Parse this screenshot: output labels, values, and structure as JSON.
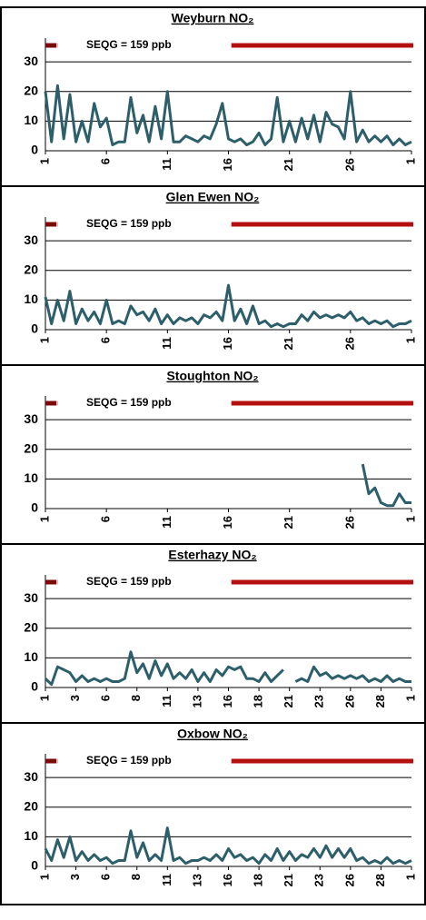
{
  "chart_data": [
    {
      "type": "line",
      "title": "Weyburn NO₂",
      "annotation": "SEQG = 159 ppb",
      "color": "#2d5f6b",
      "x": [
        1,
        1.5,
        2,
        2.5,
        3,
        3.5,
        4,
        4.5,
        5,
        5.5,
        6,
        6.5,
        7,
        7.5,
        8,
        8.5,
        9,
        9.5,
        10,
        10.5,
        11,
        11.5,
        12,
        12.5,
        13,
        13.5,
        14,
        14.5,
        15,
        15.5,
        16,
        16.5,
        17,
        17.5,
        18,
        18.5,
        19,
        19.5,
        20,
        20.5,
        21,
        21.5,
        22,
        22.5,
        23,
        23.5,
        24,
        24.5,
        25,
        25.5,
        26,
        26.5,
        27,
        27.5,
        28,
        28.5,
        29,
        29.5,
        30,
        30.5,
        31
      ],
      "values": [
        20,
        3,
        22,
        4,
        19,
        3,
        10,
        3,
        16,
        8,
        11,
        2,
        3,
        3,
        18,
        6,
        12,
        3,
        15,
        4,
        20,
        3,
        3,
        5,
        4,
        3,
        5,
        4,
        9,
        16,
        4,
        3,
        4,
        2,
        3,
        6,
        2,
        4,
        18,
        3,
        10,
        3,
        11,
        4,
        12,
        3,
        13,
        9,
        8,
        4,
        20,
        3,
        7,
        3,
        5,
        3,
        5,
        2,
        4,
        2,
        3
      ],
      "xlim": [
        1,
        31
      ],
      "xticks": [
        1,
        6,
        11,
        16,
        21,
        26,
        {
          "value": 31,
          "label": "1"
        }
      ],
      "ylim": [
        0,
        38
      ],
      "yticks": [
        0,
        10,
        20,
        30
      ],
      "grid": true
    },
    {
      "type": "line",
      "title": "Glen Ewen NO₂",
      "annotation": "SEQG = 159 ppb",
      "color": "#2d5f6b",
      "x": [
        1,
        1.5,
        2,
        2.5,
        3,
        3.5,
        4,
        4.5,
        5,
        5.5,
        6,
        6.5,
        7,
        7.5,
        8,
        8.5,
        9,
        9.5,
        10,
        10.5,
        11,
        11.5,
        12,
        12.5,
        13,
        13.5,
        14,
        14.5,
        15,
        15.5,
        16,
        16.5,
        17,
        17.5,
        18,
        18.5,
        19,
        19.5,
        20,
        20.5,
        21,
        21.5,
        22,
        22.5,
        23,
        23.5,
        24,
        24.5,
        25,
        25.5,
        26,
        26.5,
        27,
        27.5,
        28,
        28.5,
        29,
        29.5,
        30,
        30.5,
        31
      ],
      "values": [
        11,
        2,
        10,
        3,
        13,
        2,
        7,
        3,
        6,
        2,
        10,
        2,
        3,
        2,
        8,
        5,
        6,
        3,
        7,
        2,
        5,
        2,
        4,
        3,
        4,
        2,
        5,
        4,
        6,
        3,
        15,
        3,
        7,
        2,
        8,
        2,
        3,
        1,
        2,
        1,
        2,
        2,
        5,
        3,
        6,
        4,
        5,
        4,
        5,
        4,
        6,
        3,
        4,
        2,
        3,
        2,
        3,
        1,
        2,
        2,
        3
      ],
      "xlim": [
        1,
        31
      ],
      "xticks": [
        1,
        6,
        11,
        16,
        21,
        26,
        {
          "value": 31,
          "label": "1"
        }
      ],
      "ylim": [
        0,
        38
      ],
      "yticks": [
        0,
        10,
        20,
        30
      ],
      "grid": true
    },
    {
      "type": "line",
      "title": "Stoughton NO₂",
      "annotation": "SEQG = 159 ppb",
      "color": "#2d5f6b",
      "x": [
        1,
        1.5,
        2,
        2.5,
        3,
        3.5,
        4,
        4.5,
        5,
        5.5,
        6,
        6.5,
        7,
        7.5,
        8,
        8.5,
        9,
        9.5,
        10,
        10.5,
        11,
        11.5,
        12,
        12.5,
        13,
        13.5,
        14,
        14.5,
        15,
        15.5,
        16,
        16.5,
        17,
        17.5,
        18,
        18.5,
        19,
        19.5,
        20,
        20.5,
        21,
        21.5,
        22,
        22.5,
        23,
        23.5,
        24,
        24.5,
        25,
        25.5,
        26,
        26.5,
        27,
        27.5,
        28,
        28.5,
        29,
        29.5,
        30,
        30.5,
        31
      ],
      "values": [
        null,
        null,
        null,
        null,
        null,
        null,
        null,
        null,
        null,
        null,
        null,
        null,
        null,
        null,
        null,
        null,
        null,
        null,
        null,
        null,
        null,
        null,
        null,
        null,
        null,
        null,
        null,
        null,
        null,
        null,
        null,
        null,
        null,
        null,
        null,
        null,
        null,
        null,
        null,
        null,
        null,
        null,
        null,
        null,
        null,
        null,
        null,
        null,
        null,
        null,
        null,
        null,
        15,
        5,
        7,
        2,
        1,
        1,
        5,
        2,
        2
      ],
      "xlim": [
        1,
        31
      ],
      "xticks": [
        1,
        6,
        11,
        16,
        21,
        26,
        {
          "value": 31,
          "label": "1"
        }
      ],
      "ylim": [
        0,
        38
      ],
      "yticks": [
        0,
        10,
        20,
        30
      ],
      "grid": true
    },
    {
      "type": "line",
      "title": "Esterhazy NO₂",
      "annotation": "SEQG = 159 ppb",
      "color": "#2d5f6b",
      "x": [
        1,
        1.5,
        2,
        2.5,
        3,
        3.5,
        4,
        4.5,
        5,
        5.5,
        6,
        6.5,
        7,
        7.5,
        8,
        8.5,
        9,
        9.5,
        10,
        10.5,
        11,
        11.5,
        12,
        12.5,
        13,
        13.5,
        14,
        14.5,
        15,
        15.5,
        16,
        16.5,
        17,
        17.5,
        18,
        18.5,
        19,
        19.5,
        20,
        20.5,
        21,
        21.5,
        22,
        22.5,
        23,
        23.5,
        24,
        24.5,
        25,
        25.5,
        26,
        26.5,
        27,
        27.5,
        28,
        28.5,
        29,
        29.5,
        30,
        30.5,
        31
      ],
      "values": [
        3,
        1,
        7,
        6,
        5,
        2,
        4,
        2,
        3,
        2,
        3,
        2,
        2,
        3,
        12,
        5,
        8,
        3,
        9,
        4,
        8,
        3,
        5,
        3,
        6,
        2,
        5,
        2,
        6,
        4,
        7,
        6,
        7,
        3,
        3,
        2,
        5,
        2,
        4,
        6,
        null,
        2,
        3,
        2,
        7,
        4,
        5,
        3,
        4,
        3,
        4,
        3,
        4,
        2,
        3,
        2,
        4,
        2,
        3,
        2,
        2
      ],
      "xlim": [
        1,
        31
      ],
      "xticks": [
        1,
        {
          "value": 3.5,
          "label": "3"
        },
        6,
        {
          "value": 8.5,
          "label": "8"
        },
        11,
        {
          "value": 13.5,
          "label": "13"
        },
        16,
        {
          "value": 18.5,
          "label": "18"
        },
        21,
        {
          "value": 23.5,
          "label": "23"
        },
        26,
        {
          "value": 28.5,
          "label": "28"
        },
        {
          "value": 31,
          "label": "1"
        }
      ],
      "ylim": [
        0,
        38
      ],
      "yticks": [
        0,
        10,
        20,
        30
      ],
      "grid": true
    },
    {
      "type": "line",
      "title": "Oxbow NO₂",
      "annotation": "SEQG = 159 ppb",
      "color": "#2d5f6b",
      "x": [
        1,
        1.5,
        2,
        2.5,
        3,
        3.5,
        4,
        4.5,
        5,
        5.5,
        6,
        6.5,
        7,
        7.5,
        8,
        8.5,
        9,
        9.5,
        10,
        10.5,
        11,
        11.5,
        12,
        12.5,
        13,
        13.5,
        14,
        14.5,
        15,
        15.5,
        16,
        16.5,
        17,
        17.5,
        18,
        18.5,
        19,
        19.5,
        20,
        20.5,
        21,
        21.5,
        22,
        22.5,
        23,
        23.5,
        24,
        24.5,
        25,
        25.5,
        26,
        26.5,
        27,
        27.5,
        28,
        28.5,
        29,
        29.5,
        30,
        30.5,
        31
      ],
      "values": [
        6,
        2,
        9,
        3,
        10,
        2,
        5,
        2,
        4,
        2,
        3,
        1,
        2,
        2,
        12,
        3,
        8,
        2,
        4,
        2,
        13,
        2,
        3,
        1,
        2,
        2,
        3,
        2,
        4,
        2,
        6,
        3,
        4,
        2,
        3,
        1,
        4,
        2,
        6,
        2,
        5,
        2,
        4,
        3,
        6,
        3,
        7,
        3,
        6,
        3,
        6,
        2,
        3,
        1,
        2,
        1,
        3,
        1,
        2,
        1,
        2
      ],
      "xlim": [
        1,
        31
      ],
      "xticks": [
        1,
        {
          "value": 3.5,
          "label": "3"
        },
        6,
        {
          "value": 8.5,
          "label": "8"
        },
        11,
        {
          "value": 13.5,
          "label": "13"
        },
        16,
        {
          "value": 18.5,
          "label": "18"
        },
        21,
        {
          "value": 23.5,
          "label": "23"
        },
        26,
        {
          "value": 28.5,
          "label": "28"
        },
        {
          "value": 31,
          "label": "1"
        }
      ],
      "ylim": [
        0,
        38
      ],
      "yticks": [
        0,
        10,
        20,
        30
      ],
      "grid": true
    }
  ]
}
